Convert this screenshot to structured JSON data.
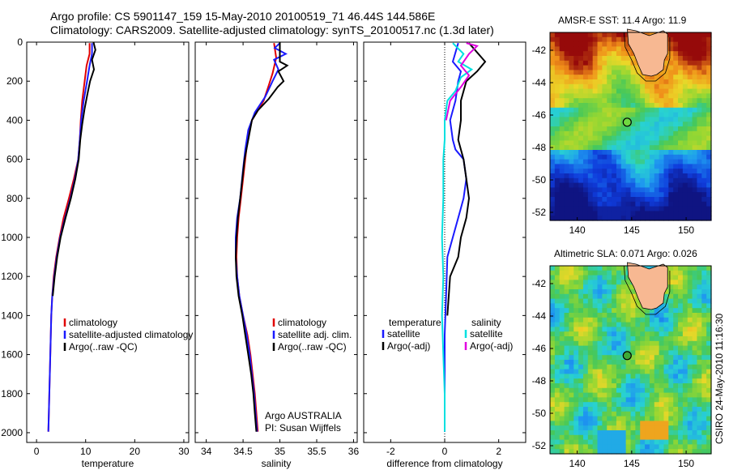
{
  "header": {
    "line1": "Argo profile: CS 5901147_159 15-May-2010 20100519_71 46.44S 144.586E",
    "line2": "Climatology: CARS2009. Satellite-adjusted climatology: synTS_20100517.nc (1.3d later)"
  },
  "credit": "CSIRO 24-May-2010 11:16:30",
  "colors": {
    "climatology": "#e00000",
    "satellite": "#1a1aff",
    "argo": "#000000",
    "cyan": "#00e0e0",
    "magenta": "#e000e0"
  },
  "chart_data": [
    {
      "type": "line",
      "xlabel": "temperature",
      "ylabel": "",
      "xlim": [
        -2,
        31
      ],
      "ylim": [
        2050,
        0
      ],
      "xticks": [
        0,
        10,
        20,
        30
      ],
      "yticks": [
        0,
        200,
        400,
        600,
        800,
        1000,
        1200,
        1400,
        1600,
        1800,
        2000
      ],
      "legend": "lower-right",
      "series": [
        {
          "name": "climatology",
          "color": "#e00000",
          "points": [
            [
              10.8,
              5
            ],
            [
              10.8,
              60
            ],
            [
              10.2,
              120
            ],
            [
              9.8,
              200
            ],
            [
              9.3,
              300
            ],
            [
              9.0,
              400
            ],
            [
              8.8,
              500
            ],
            [
              8.5,
              600
            ],
            [
              7.6,
              700
            ],
            [
              6.6,
              800
            ],
            [
              5.5,
              900
            ],
            [
              4.7,
              1000
            ],
            [
              4.0,
              1100
            ],
            [
              3.5,
              1200
            ],
            [
              3.2,
              1300
            ],
            [
              3.0,
              1400
            ],
            [
              2.9,
              1500
            ],
            [
              2.8,
              1600
            ],
            [
              2.7,
              1700
            ],
            [
              2.6,
              1800
            ],
            [
              2.5,
              1900
            ],
            [
              2.4,
              1995
            ]
          ]
        },
        {
          "name": "satellite-adjusted climatology",
          "color": "#1a1aff",
          "points": [
            [
              11.3,
              5
            ],
            [
              11.3,
              60
            ],
            [
              10.8,
              120
            ],
            [
              10.3,
              200
            ],
            [
              9.6,
              300
            ],
            [
              9.1,
              400
            ],
            [
              8.8,
              500
            ],
            [
              8.5,
              600
            ],
            [
              7.8,
              700
            ],
            [
              6.9,
              800
            ],
            [
              5.8,
              900
            ],
            [
              4.8,
              1000
            ],
            [
              4.1,
              1100
            ],
            [
              3.6,
              1200
            ],
            [
              3.2,
              1300
            ],
            [
              3.0,
              1400
            ],
            [
              2.9,
              1500
            ],
            [
              2.8,
              1600
            ],
            [
              2.7,
              1700
            ],
            [
              2.6,
              1800
            ],
            [
              2.5,
              1900
            ],
            [
              2.4,
              1995
            ]
          ]
        },
        {
          "name": "Argo(..raw -QC)",
          "color": "#000000",
          "points": [
            [
              11.6,
              0
            ],
            [
              12.0,
              40
            ],
            [
              11.3,
              90
            ],
            [
              11.7,
              140
            ],
            [
              10.9,
              200
            ],
            [
              10.4,
              260
            ],
            [
              9.8,
              340
            ],
            [
              9.3,
              420
            ],
            [
              8.9,
              500
            ],
            [
              8.6,
              600
            ],
            [
              7.9,
              700
            ],
            [
              7.0,
              800
            ],
            [
              5.9,
              900
            ],
            [
              4.9,
              1000
            ],
            [
              4.2,
              1100
            ],
            [
              3.7,
              1200
            ],
            [
              3.3,
              1300
            ]
          ]
        }
      ],
      "legend_entries": [
        "climatology",
        "satellite-adjusted climatology",
        "Argo(..raw -QC)"
      ]
    },
    {
      "type": "line",
      "xlabel": "salinity",
      "ylabel": "",
      "xlim": [
        33.85,
        36.05
      ],
      "ylim": [
        2050,
        0
      ],
      "xticks": [
        34,
        34.5,
        35,
        35.5,
        36
      ],
      "legend": "lower-right",
      "annotation": [
        "Argo AUSTRALIA",
        "PI: Susan Wijffels"
      ],
      "series": [
        {
          "name": "climatology",
          "color": "#e00000",
          "points": [
            [
              34.92,
              5
            ],
            [
              34.95,
              80
            ],
            [
              34.9,
              160
            ],
            [
              34.85,
              220
            ],
            [
              34.78,
              300
            ],
            [
              34.7,
              350
            ],
            [
              34.62,
              400
            ],
            [
              34.56,
              500
            ],
            [
              34.53,
              600
            ],
            [
              34.5,
              700
            ],
            [
              34.47,
              800
            ],
            [
              34.44,
              900
            ],
            [
              34.42,
              1000
            ],
            [
              34.41,
              1100
            ],
            [
              34.42,
              1200
            ],
            [
              34.45,
              1300
            ],
            [
              34.5,
              1400
            ],
            [
              34.56,
              1500
            ],
            [
              34.6,
              1600
            ],
            [
              34.63,
              1700
            ],
            [
              34.66,
              1800
            ],
            [
              34.68,
              1900
            ],
            [
              34.7,
              1995
            ]
          ]
        },
        {
          "name": "satellite adj. clim.",
          "color": "#1a1aff",
          "points": [
            [
              35.0,
              5
            ],
            [
              34.93,
              30
            ],
            [
              35.08,
              60
            ],
            [
              34.92,
              90
            ],
            [
              34.98,
              140
            ],
            [
              34.9,
              200
            ],
            [
              34.8,
              280
            ],
            [
              34.66,
              360
            ],
            [
              34.57,
              450
            ],
            [
              34.53,
              550
            ],
            [
              34.5,
              650
            ],
            [
              34.46,
              800
            ],
            [
              34.42,
              900
            ],
            [
              34.4,
              1000
            ],
            [
              34.4,
              1100
            ],
            [
              34.42,
              1200
            ],
            [
              34.45,
              1300
            ],
            [
              34.5,
              1400
            ],
            [
              34.55,
              1500
            ],
            [
              34.59,
              1600
            ],
            [
              34.62,
              1700
            ],
            [
              34.65,
              1800
            ],
            [
              34.67,
              1900
            ],
            [
              34.69,
              1995
            ]
          ]
        },
        {
          "name": "Argo(..raw -QC)",
          "color": "#000000",
          "points": [
            [
              35.0,
              0
            ],
            [
              35.0,
              100
            ],
            [
              35.1,
              120
            ],
            [
              34.98,
              150
            ],
            [
              35.05,
              200
            ],
            [
              34.97,
              230
            ],
            [
              34.85,
              290
            ],
            [
              34.7,
              350
            ],
            [
              34.62,
              400
            ],
            [
              34.57,
              500
            ],
            [
              34.52,
              600
            ],
            [
              34.49,
              700
            ],
            [
              34.46,
              800
            ],
            [
              34.43,
              900
            ],
            [
              34.41,
              1000
            ],
            [
              34.4,
              1100
            ],
            [
              34.41,
              1200
            ],
            [
              34.44,
              1300
            ],
            [
              34.49,
              1400
            ],
            [
              34.53,
              1500
            ],
            [
              34.57,
              1600
            ],
            [
              34.61,
              1700
            ],
            [
              34.64,
              1800
            ],
            [
              34.66,
              1900
            ],
            [
              34.68,
              1995
            ]
          ]
        }
      ],
      "legend_entries": [
        "climatology",
        "satellite adj. clim.",
        "Argo(..raw -QC)"
      ]
    },
    {
      "type": "line",
      "xlabel": "difference from climatology",
      "ylabel": "",
      "xlim": [
        -3,
        3
      ],
      "ylim": [
        2050,
        0
      ],
      "xticks": [
        -2,
        0,
        2
      ],
      "legend": "lower-center",
      "zero_line": true,
      "series": [
        {
          "name": "temperature satellite",
          "group": "temperature",
          "color": "#1a1aff",
          "points": [
            [
              0.5,
              5
            ],
            [
              0.3,
              100
            ],
            [
              0.6,
              150
            ],
            [
              0.5,
              200
            ],
            [
              0.4,
              300
            ],
            [
              0.2,
              400
            ],
            [
              0.3,
              500
            ],
            [
              0.4,
              550
            ],
            [
              0.7,
              600
            ],
            [
              0.8,
              700
            ],
            [
              0.7,
              800
            ],
            [
              0.5,
              900
            ],
            [
              0.3,
              1000
            ],
            [
              0.1,
              1100
            ],
            [
              0.05,
              1300
            ],
            [
              0,
              1500
            ],
            [
              0,
              1700
            ],
            [
              0,
              1995
            ]
          ]
        },
        {
          "name": "temperature Argo(-adj)",
          "group": "temperature",
          "color": "#000000",
          "points": [
            [
              0.9,
              5
            ],
            [
              1.5,
              100
            ],
            [
              1.2,
              150
            ],
            [
              0.8,
              200
            ],
            [
              0.6,
              300
            ],
            [
              0.6,
              400
            ],
            [
              0.5,
              500
            ],
            [
              0.7,
              600
            ],
            [
              0.8,
              700
            ],
            [
              0.9,
              800
            ],
            [
              0.8,
              900
            ],
            [
              0.6,
              1000
            ],
            [
              0.5,
              1100
            ],
            [
              0.2,
              1200
            ],
            [
              0.1,
              1400
            ]
          ]
        },
        {
          "name": "salinity satellite",
          "group": "salinity",
          "color": "#00e0e0",
          "points": [
            [
              0.3,
              5
            ],
            [
              0.7,
              60
            ],
            [
              0.5,
              100
            ],
            [
              1.0,
              140
            ],
            [
              0.6,
              180
            ],
            [
              0.4,
              250
            ],
            [
              0.1,
              300
            ],
            [
              0,
              400
            ],
            [
              0,
              500
            ],
            [
              -0.05,
              600
            ],
            [
              -0.05,
              800
            ],
            [
              -0.1,
              1000
            ],
            [
              -0.05,
              1200
            ],
            [
              -0.1,
              1400
            ],
            [
              -0.05,
              1600
            ],
            [
              0,
              1800
            ],
            [
              0,
              1995
            ]
          ]
        },
        {
          "name": "salinity Argo(-adj)",
          "group": "salinity",
          "color": "#e000e0",
          "points": [
            [
              0.8,
              5
            ],
            [
              1.2,
              20
            ],
            [
              0.9,
              60
            ],
            [
              0.6,
              120
            ],
            [
              0.9,
              170
            ],
            [
              0.6,
              230
            ],
            [
              0.2,
              300
            ],
            [
              0.05,
              400
            ]
          ]
        }
      ],
      "legend_groups": [
        {
          "title": "temperature",
          "entries": [
            "satellite",
            "Argo(-adj)"
          ]
        },
        {
          "title": "salinity",
          "entries": [
            "satellite",
            "Argo(-adj)"
          ]
        }
      ]
    },
    {
      "type": "heatmap",
      "title": "AMSR-E SST: 11.4 Argo: 11.9",
      "xlim": [
        137.5,
        152.3
      ],
      "ylim": [
        -52.5,
        -40.9
      ],
      "xticks": [
        140,
        145,
        150
      ],
      "yticks": [
        -42,
        -44,
        -46,
        -48,
        -50,
        -52
      ],
      "profile_location": [
        144.586,
        -46.44
      ]
    },
    {
      "type": "heatmap",
      "title": "Altimetric SLA: 0.071 Argo: 0.026",
      "xlim": [
        137.5,
        152.3
      ],
      "ylim": [
        -52.5,
        -40.9
      ],
      "xticks": [
        140,
        145,
        150
      ],
      "yticks": [
        -42,
        -44,
        -46,
        -48,
        -50,
        -52
      ],
      "profile_location": [
        144.586,
        -46.44
      ]
    }
  ]
}
